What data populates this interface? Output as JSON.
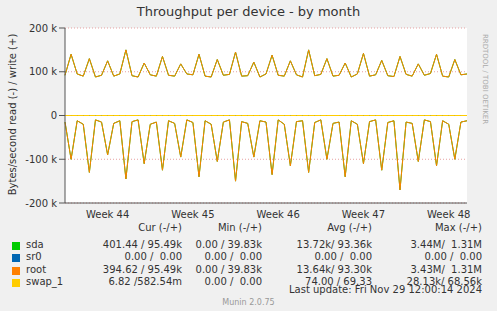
{
  "chart_data": {
    "type": "line",
    "title": "Throughput per device - by month",
    "y_label": "Bytes/second read (-) / write (+)",
    "side_text": "RRDTOOL / TOBI OETIKER",
    "last_update": "Last update: Fri Nov 29 12:00:14 2024",
    "footer": "Munin 2.0.75",
    "grid": true,
    "ylim": [
      -200000,
      200000
    ],
    "yticks": [
      {
        "value": -200000,
        "label": "-200 k"
      },
      {
        "value": -100000,
        "label": "-100 k"
      },
      0,
      {
        "value": 100000,
        "label": "100 k"
      },
      {
        "value": 200000,
        "label": "200 k"
      }
    ],
    "categories": [
      null,
      null,
      null,
      null,
      null,
      null,
      null,
      "Week 44",
      null,
      null,
      null,
      null,
      null,
      null,
      null,
      null,
      null,
      null,
      null,
      null,
      null,
      "Week 45",
      null,
      null,
      null,
      null,
      null,
      null,
      null,
      null,
      null,
      null,
      null,
      null,
      null,
      "Week 46",
      null,
      null,
      null,
      null,
      null,
      null,
      null,
      null,
      null,
      null,
      null,
      null,
      null,
      "Week 47",
      null,
      null,
      null,
      null,
      null,
      null,
      null,
      null,
      null,
      null,
      null,
      null,
      null,
      "Week 48",
      null,
      null,
      null
    ],
    "stats_header": [
      "Cur (-/+)",
      "Min (-/+)",
      "Avg (-/+)",
      "Max (-/+)"
    ],
    "series": [
      {
        "name": "sda",
        "color": "#00cc00",
        "cur": "401.44 / 95.49k",
        "min": "0.00 / 39.83k",
        "avg": "13.72k/ 93.36k",
        "max": "3.44M/  1.31M",
        "values": [
          92000,
          140000,
          95000,
          90000,
          130000,
          88000,
          92000,
          125000,
          90000,
          95000,
          150000,
          91000,
          88000,
          120000,
          93000,
          90000,
          135000,
          92000,
          90000,
          118000,
          95000,
          93000,
          140000,
          90000,
          88000,
          128000,
          92000,
          94000,
          145000,
          90000,
          91000,
          122000,
          88000,
          95000,
          138000,
          92000,
          90000,
          125000,
          93000,
          88000,
          150000,
          91000,
          94000,
          130000,
          90000,
          92000,
          120000,
          88000,
          95000,
          142000,
          90000,
          93000,
          126000,
          91000,
          89000,
          135000,
          94000,
          90000,
          118000,
          92000,
          96000,
          140000,
          90000,
          88000,
          128000,
          93000,
          95000
        ],
        "read_values": [
          -15000,
          -100000,
          -12000,
          -20000,
          -130000,
          -10000,
          -15000,
          -90000,
          -18000,
          -12000,
          -145000,
          -14000,
          -10000,
          -110000,
          -20000,
          -15000,
          -125000,
          -12000,
          -18000,
          -95000,
          -10000,
          -16000,
          -140000,
          -12000,
          -20000,
          -105000,
          -15000,
          -10000,
          -150000,
          -14000,
          -18000,
          -95000,
          -12000,
          -15000,
          -135000,
          -10000,
          -20000,
          -115000,
          -14000,
          -12000,
          -130000,
          -16000,
          -10000,
          -100000,
          -18000,
          -15000,
          -140000,
          -12000,
          -20000,
          -110000,
          -14000,
          -10000,
          -125000,
          -16000,
          -12000,
          -170000,
          -15000,
          -18000,
          -105000,
          -10000,
          -14000,
          -115000,
          -12000,
          -20000,
          -100000,
          -15000,
          -12000
        ]
      },
      {
        "name": "sr0",
        "color": "#0066b3",
        "cur": "0.00 /  0.00",
        "min": "0.00 /  0.00",
        "avg": "0.00 /  0.00",
        "max": "0.00 /  0.00",
        "values": [
          0,
          0,
          0,
          0,
          0,
          0,
          0,
          0,
          0,
          0,
          0,
          0,
          0,
          0,
          0,
          0,
          0,
          0,
          0,
          0,
          0,
          0,
          0,
          0,
          0,
          0,
          0,
          0,
          0,
          0,
          0,
          0,
          0,
          0,
          0,
          0,
          0,
          0,
          0,
          0,
          0,
          0,
          0,
          0,
          0,
          0,
          0,
          0,
          0,
          0,
          0,
          0,
          0,
          0,
          0,
          0,
          0,
          0,
          0,
          0,
          0,
          0,
          0,
          0,
          0,
          0,
          0
        ],
        "read_values": [
          0,
          0,
          0,
          0,
          0,
          0,
          0,
          0,
          0,
          0,
          0,
          0,
          0,
          0,
          0,
          0,
          0,
          0,
          0,
          0,
          0,
          0,
          0,
          0,
          0,
          0,
          0,
          0,
          0,
          0,
          0,
          0,
          0,
          0,
          0,
          0,
          0,
          0,
          0,
          0,
          0,
          0,
          0,
          0,
          0,
          0,
          0,
          0,
          0,
          0,
          0,
          0,
          0,
          0,
          0,
          0,
          0,
          0,
          0,
          0,
          0,
          0,
          0,
          0,
          0,
          0,
          0
        ]
      },
      {
        "name": "root",
        "color": "#ff8000",
        "cur": "394.62 / 95.49k",
        "min": "0.00 / 39.83k",
        "avg": "13.64k/ 93.30k",
        "max": "3.43M/  1.31M",
        "values": [
          92000,
          140000,
          95000,
          90000,
          130000,
          88000,
          92000,
          125000,
          90000,
          95000,
          150000,
          91000,
          88000,
          120000,
          93000,
          90000,
          135000,
          92000,
          90000,
          118000,
          95000,
          93000,
          140000,
          90000,
          88000,
          128000,
          92000,
          94000,
          145000,
          90000,
          91000,
          122000,
          88000,
          95000,
          138000,
          92000,
          90000,
          125000,
          93000,
          88000,
          150000,
          91000,
          94000,
          130000,
          90000,
          92000,
          120000,
          88000,
          95000,
          142000,
          90000,
          93000,
          126000,
          91000,
          89000,
          135000,
          94000,
          90000,
          118000,
          92000,
          96000,
          140000,
          90000,
          88000,
          128000,
          93000,
          95000
        ],
        "read_values": [
          -15000,
          -100000,
          -12000,
          -20000,
          -130000,
          -10000,
          -15000,
          -90000,
          -18000,
          -12000,
          -145000,
          -14000,
          -10000,
          -110000,
          -20000,
          -15000,
          -125000,
          -12000,
          -18000,
          -95000,
          -10000,
          -16000,
          -140000,
          -12000,
          -20000,
          -105000,
          -15000,
          -10000,
          -150000,
          -14000,
          -18000,
          -95000,
          -12000,
          -15000,
          -135000,
          -10000,
          -20000,
          -115000,
          -14000,
          -12000,
          -130000,
          -16000,
          -10000,
          -100000,
          -18000,
          -15000,
          -140000,
          -12000,
          -20000,
          -110000,
          -14000,
          -10000,
          -125000,
          -16000,
          -12000,
          -170000,
          -15000,
          -18000,
          -105000,
          -10000,
          -14000,
          -115000,
          -12000,
          -20000,
          -100000,
          -15000,
          -12000
        ]
      },
      {
        "name": "swap_1",
        "color": "#ffcc00",
        "cur": "6.82 /582.54m",
        "min": "0.00 /  0.00",
        "avg": "74.00 / 69.33",
        "max": "28.13k/ 68.56k",
        "values": [
          0,
          0,
          0,
          0,
          0,
          0,
          0,
          0,
          0,
          0,
          0,
          0,
          0,
          0,
          0,
          0,
          0,
          0,
          0,
          0,
          0,
          0,
          0,
          0,
          0,
          0,
          0,
          0,
          0,
          0,
          0,
          0,
          0,
          0,
          0,
          0,
          0,
          0,
          0,
          0,
          0,
          0,
          0,
          0,
          0,
          0,
          0,
          0,
          0,
          0,
          0,
          0,
          0,
          0,
          0,
          0,
          0,
          0,
          0,
          0,
          0,
          0,
          0,
          0,
          0,
          0,
          0
        ],
        "read_values": [
          0,
          0,
          0,
          0,
          0,
          0,
          0,
          0,
          0,
          0,
          0,
          0,
          0,
          0,
          0,
          0,
          0,
          0,
          0,
          0,
          0,
          0,
          0,
          0,
          0,
          0,
          0,
          0,
          0,
          0,
          0,
          0,
          0,
          0,
          0,
          0,
          0,
          0,
          0,
          0,
          0,
          0,
          0,
          0,
          0,
          0,
          0,
          0,
          0,
          0,
          0,
          0,
          0,
          0,
          0,
          0,
          0,
          0,
          0,
          0,
          0,
          0,
          0,
          0,
          0,
          0,
          0
        ]
      }
    ]
  }
}
